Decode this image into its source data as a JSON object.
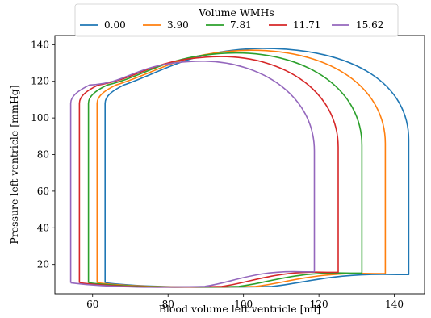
{
  "chart_data": {
    "type": "line",
    "xlabel": "Blood volume left ventricle [ml]",
    "ylabel": "Pressure left ventricle [mmHg]",
    "xlim": [
      50,
      148
    ],
    "ylim": [
      4,
      145
    ],
    "xticks": [
      60,
      80,
      100,
      120,
      140
    ],
    "yticks": [
      20,
      40,
      60,
      80,
      100,
      120,
      140
    ],
    "grid": false,
    "legend": {
      "title": "Volume WMHs",
      "placement": "top-center",
      "ncol": 5
    },
    "series": [
      {
        "name": "0.00",
        "color": "#1f77b4",
        "edv": 143.8,
        "esv": 63.3,
        "peak": 138.0,
        "peak_v": 105,
        "ivr_top": 108,
        "ivc_top": 88,
        "fill_end": 14.5,
        "min": 8.0
      },
      {
        "name": "3.90",
        "color": "#ff7f0e",
        "edv": 137.6,
        "esv": 61.2,
        "peak": 137.0,
        "peak_v": 102,
        "ivr_top": 108,
        "ivc_top": 86,
        "fill_end": 15.0,
        "min": 8.0
      },
      {
        "name": "7.81",
        "color": "#2ca02c",
        "edv": 131.4,
        "esv": 58.9,
        "peak": 135.5,
        "peak_v": 98,
        "ivr_top": 108,
        "ivc_top": 85,
        "fill_end": 15.3,
        "min": 8.0
      },
      {
        "name": "11.71",
        "color": "#d62728",
        "edv": 125.1,
        "esv": 56.5,
        "peak": 133.5,
        "peak_v": 94,
        "ivr_top": 108,
        "ivc_top": 84,
        "fill_end": 15.7,
        "min": 8.0
      },
      {
        "name": "15.62",
        "color": "#9467bd",
        "edv": 118.8,
        "esv": 54.2,
        "peak": 131.0,
        "peak_v": 89,
        "ivr_top": 108,
        "ivc_top": 82,
        "fill_end": 16.0,
        "min": 8.0
      }
    ]
  }
}
